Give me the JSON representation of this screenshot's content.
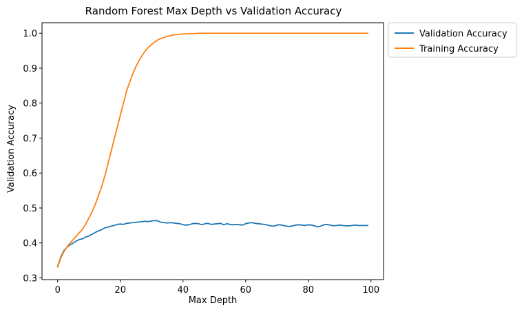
{
  "chart_data": {
    "type": "line",
    "title": "Random Forest Max Depth vs Validation Accuracy",
    "xlabel": "Max Depth",
    "ylabel": "Validation Accuracy",
    "xlim": [
      -5,
      104
    ],
    "ylim": [
      0.295,
      1.03
    ],
    "xticks": [
      0,
      20,
      40,
      60,
      80,
      100
    ],
    "yticks": [
      0.3,
      0.4,
      0.5,
      0.6,
      0.7,
      0.8,
      0.9,
      1.0
    ],
    "xtick_labels": [
      "0",
      "20",
      "40",
      "60",
      "80",
      "100"
    ],
    "ytick_labels": [
      "0.3",
      "0.4",
      "0.5",
      "0.6",
      "0.7",
      "0.8",
      "0.9",
      "1.0"
    ],
    "grid": false,
    "legend_position": "outside-top-right",
    "x": [
      0,
      1,
      2,
      3,
      4,
      5,
      6,
      7,
      8,
      9,
      10,
      11,
      12,
      13,
      14,
      15,
      16,
      17,
      18,
      19,
      20,
      21,
      22,
      23,
      24,
      25,
      26,
      27,
      28,
      29,
      30,
      31,
      32,
      33,
      34,
      35,
      36,
      37,
      38,
      39,
      40,
      41,
      42,
      43,
      44,
      45,
      46,
      47,
      48,
      49,
      50,
      51,
      52,
      53,
      54,
      55,
      56,
      57,
      58,
      59,
      60,
      61,
      62,
      63,
      64,
      65,
      66,
      67,
      68,
      69,
      70,
      71,
      72,
      73,
      74,
      75,
      76,
      77,
      78,
      79,
      80,
      81,
      82,
      83,
      84,
      85,
      86,
      87,
      88,
      89,
      90,
      91,
      92,
      93,
      94,
      95,
      96,
      97,
      98,
      99
    ],
    "series": [
      {
        "name": "Validation Accuracy",
        "color": "#1f77b4",
        "values": [
          0.333,
          0.36,
          0.378,
          0.388,
          0.395,
          0.4,
          0.406,
          0.41,
          0.412,
          0.417,
          0.42,
          0.425,
          0.43,
          0.434,
          0.438,
          0.443,
          0.445,
          0.448,
          0.45,
          0.453,
          0.454,
          0.453,
          0.456,
          0.457,
          0.458,
          0.459,
          0.46,
          0.461,
          0.462,
          0.461,
          0.463,
          0.464,
          0.463,
          0.459,
          0.458,
          0.457,
          0.458,
          0.457,
          0.456,
          0.455,
          0.452,
          0.451,
          0.452,
          0.455,
          0.456,
          0.455,
          0.452,
          0.455,
          0.456,
          0.453,
          0.454,
          0.455,
          0.456,
          0.452,
          0.455,
          0.453,
          0.452,
          0.453,
          0.452,
          0.451,
          0.455,
          0.457,
          0.458,
          0.456,
          0.455,
          0.454,
          0.453,
          0.451,
          0.449,
          0.448,
          0.451,
          0.452,
          0.45,
          0.448,
          0.447,
          0.449,
          0.451,
          0.452,
          0.451,
          0.45,
          0.452,
          0.451,
          0.449,
          0.446,
          0.448,
          0.452,
          0.453,
          0.451,
          0.449,
          0.45,
          0.451,
          0.45,
          0.449,
          0.449,
          0.45,
          0.451,
          0.45,
          0.45,
          0.45,
          0.45
        ]
      },
      {
        "name": "Training Accuracy",
        "color": "#ff7f0e",
        "values": [
          0.331,
          0.357,
          0.375,
          0.389,
          0.4,
          0.41,
          0.42,
          0.43,
          0.44,
          0.455,
          0.472,
          0.49,
          0.51,
          0.535,
          0.56,
          0.59,
          0.625,
          0.66,
          0.695,
          0.73,
          0.765,
          0.8,
          0.835,
          0.86,
          0.885,
          0.905,
          0.922,
          0.937,
          0.95,
          0.96,
          0.968,
          0.975,
          0.981,
          0.985,
          0.988,
          0.991,
          0.993,
          0.995,
          0.996,
          0.997,
          0.998,
          0.998,
          0.999,
          0.999,
          0.999,
          1.0,
          1.0,
          1.0,
          1.0,
          1.0,
          1.0,
          1.0,
          1.0,
          1.0,
          1.0,
          1.0,
          1.0,
          1.0,
          1.0,
          1.0,
          1.0,
          1.0,
          1.0,
          1.0,
          1.0,
          1.0,
          1.0,
          1.0,
          1.0,
          1.0,
          1.0,
          1.0,
          1.0,
          1.0,
          1.0,
          1.0,
          1.0,
          1.0,
          1.0,
          1.0,
          1.0,
          1.0,
          1.0,
          1.0,
          1.0,
          1.0,
          1.0,
          1.0,
          1.0,
          1.0,
          1.0,
          1.0,
          1.0,
          1.0,
          1.0,
          1.0,
          1.0,
          1.0,
          1.0,
          1.0
        ]
      }
    ]
  }
}
